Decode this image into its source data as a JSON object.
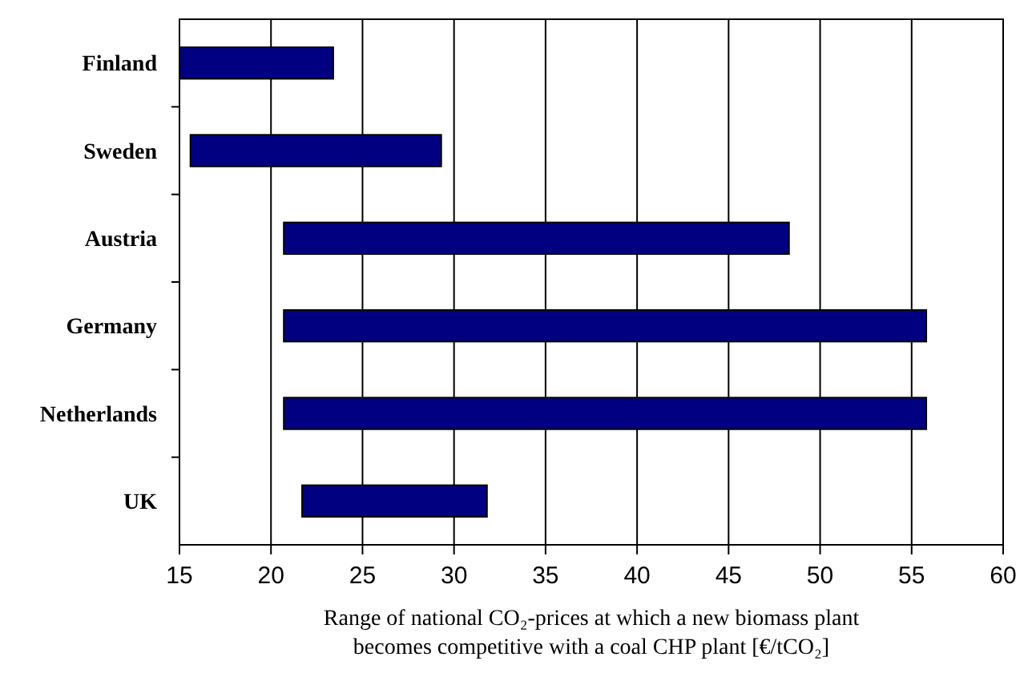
{
  "chart_data": {
    "type": "bar",
    "orientation": "horizontal",
    "categories": [
      "Finland",
      "Sweden",
      "Austria",
      "Germany",
      "Netherlands",
      "UK"
    ],
    "base": [
      15,
      15.6,
      20.7,
      20.7,
      20.7,
      21.7
    ],
    "values": [
      8.4,
      13.7,
      27.6,
      35.1,
      35.1,
      10.1
    ],
    "color": "#000080",
    "xlim": [
      15,
      60
    ],
    "xticks": [
      15,
      20,
      25,
      30,
      35,
      40,
      45,
      50,
      55,
      60
    ],
    "grid": "x",
    "xlabel": "Range of national CO₂-prices at which a new biomass plant becomes competitive with a coal CHP plant [€/tCO₂]"
  }
}
